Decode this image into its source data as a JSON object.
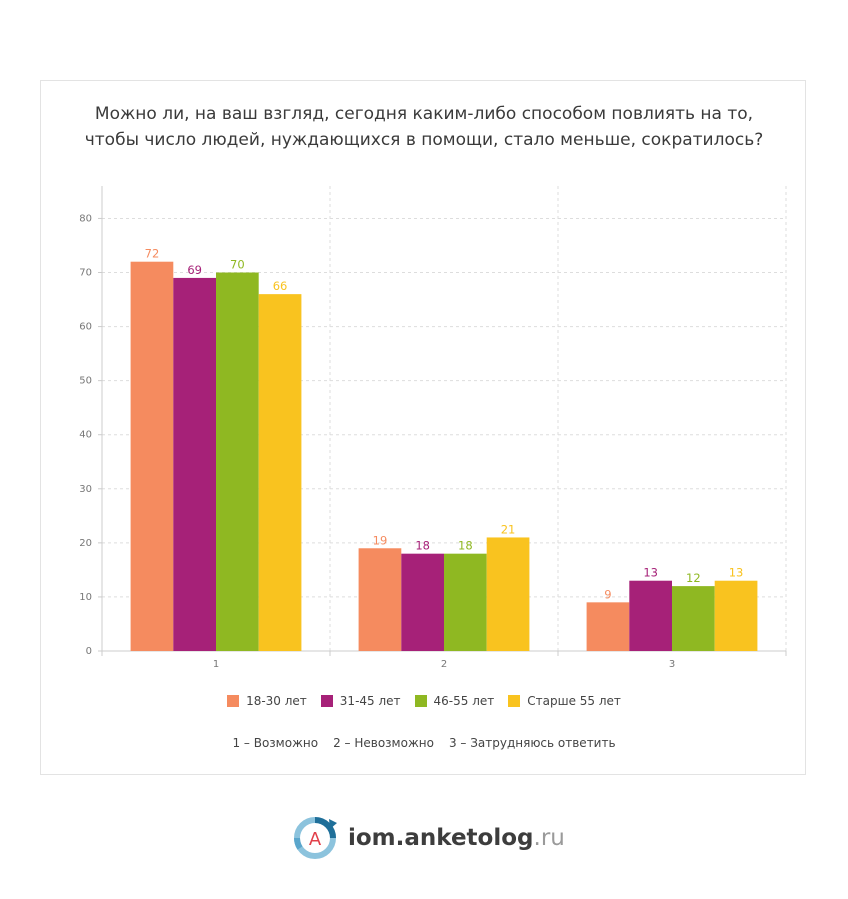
{
  "chart_data": {
    "type": "bar",
    "title_lines": [
      "Можно ли, на ваш взгляд, сегодня каким-либо способом повлиять на то,",
      "чтобы число людей, нуждающихся в помощи, стало меньше, сократилось?"
    ],
    "categories": [
      "1",
      "2",
      "3"
    ],
    "series": [
      {
        "name": "18-30 лет",
        "color": "#f58b5f",
        "values": [
          72,
          19,
          9
        ]
      },
      {
        "name": "31-45 лет",
        "color": "#a62178",
        "values": [
          69,
          18,
          13
        ]
      },
      {
        "name": "46-55 лет",
        "color": "#8fb822",
        "values": [
          70,
          18,
          12
        ]
      },
      {
        "name": "Старше 55 лет",
        "color": "#f9c31f",
        "values": [
          66,
          21,
          13
        ]
      }
    ],
    "ylim": [
      0,
      86
    ],
    "yticks": [
      0,
      10,
      20,
      30,
      40,
      50,
      60,
      70,
      80
    ],
    "grid": true,
    "legend_position": "bottom",
    "category_notes": [
      "1 – Возможно",
      "2 – Невозможно",
      "3 – Затрудняюсь ответить"
    ]
  },
  "brand": {
    "logo_letter": "A",
    "name": "iom.anketolog",
    "suffix": ".ru"
  }
}
